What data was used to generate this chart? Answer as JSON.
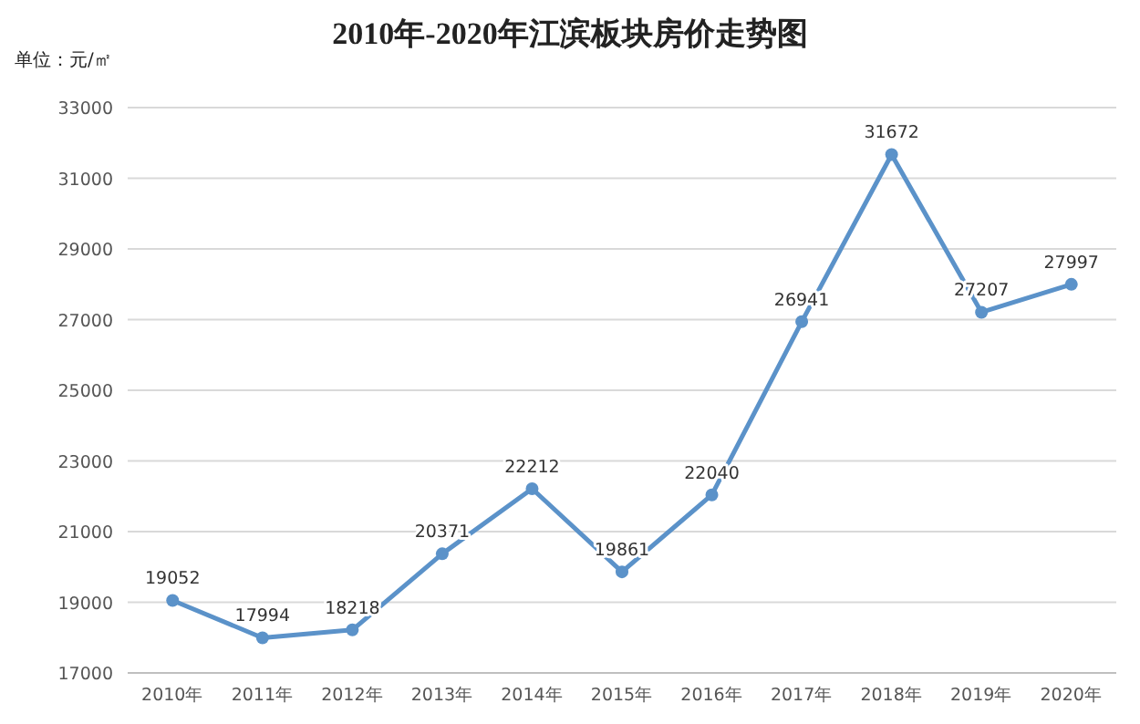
{
  "chart_data": {
    "type": "line",
    "title": "2010年-2020年江滨板块房价走势图",
    "ylabel": "单位：元/㎡",
    "categories": [
      "2010年",
      "2011年",
      "2012年",
      "2013年",
      "2014年",
      "2015年",
      "2016年",
      "2017年",
      "2018年",
      "2019年",
      "2020年"
    ],
    "values": [
      19052,
      17994,
      18218,
      20371,
      22212,
      19861,
      22040,
      26941,
      31672,
      27207,
      27997
    ],
    "color": "#5b92c9",
    "ylim": [
      17000,
      33000
    ],
    "yticks": [
      17000,
      19000,
      21000,
      23000,
      25000,
      27000,
      29000,
      31000,
      33000
    ],
    "grid": "y",
    "marker": "circle",
    "line_style": "solid",
    "data_labels": true
  }
}
